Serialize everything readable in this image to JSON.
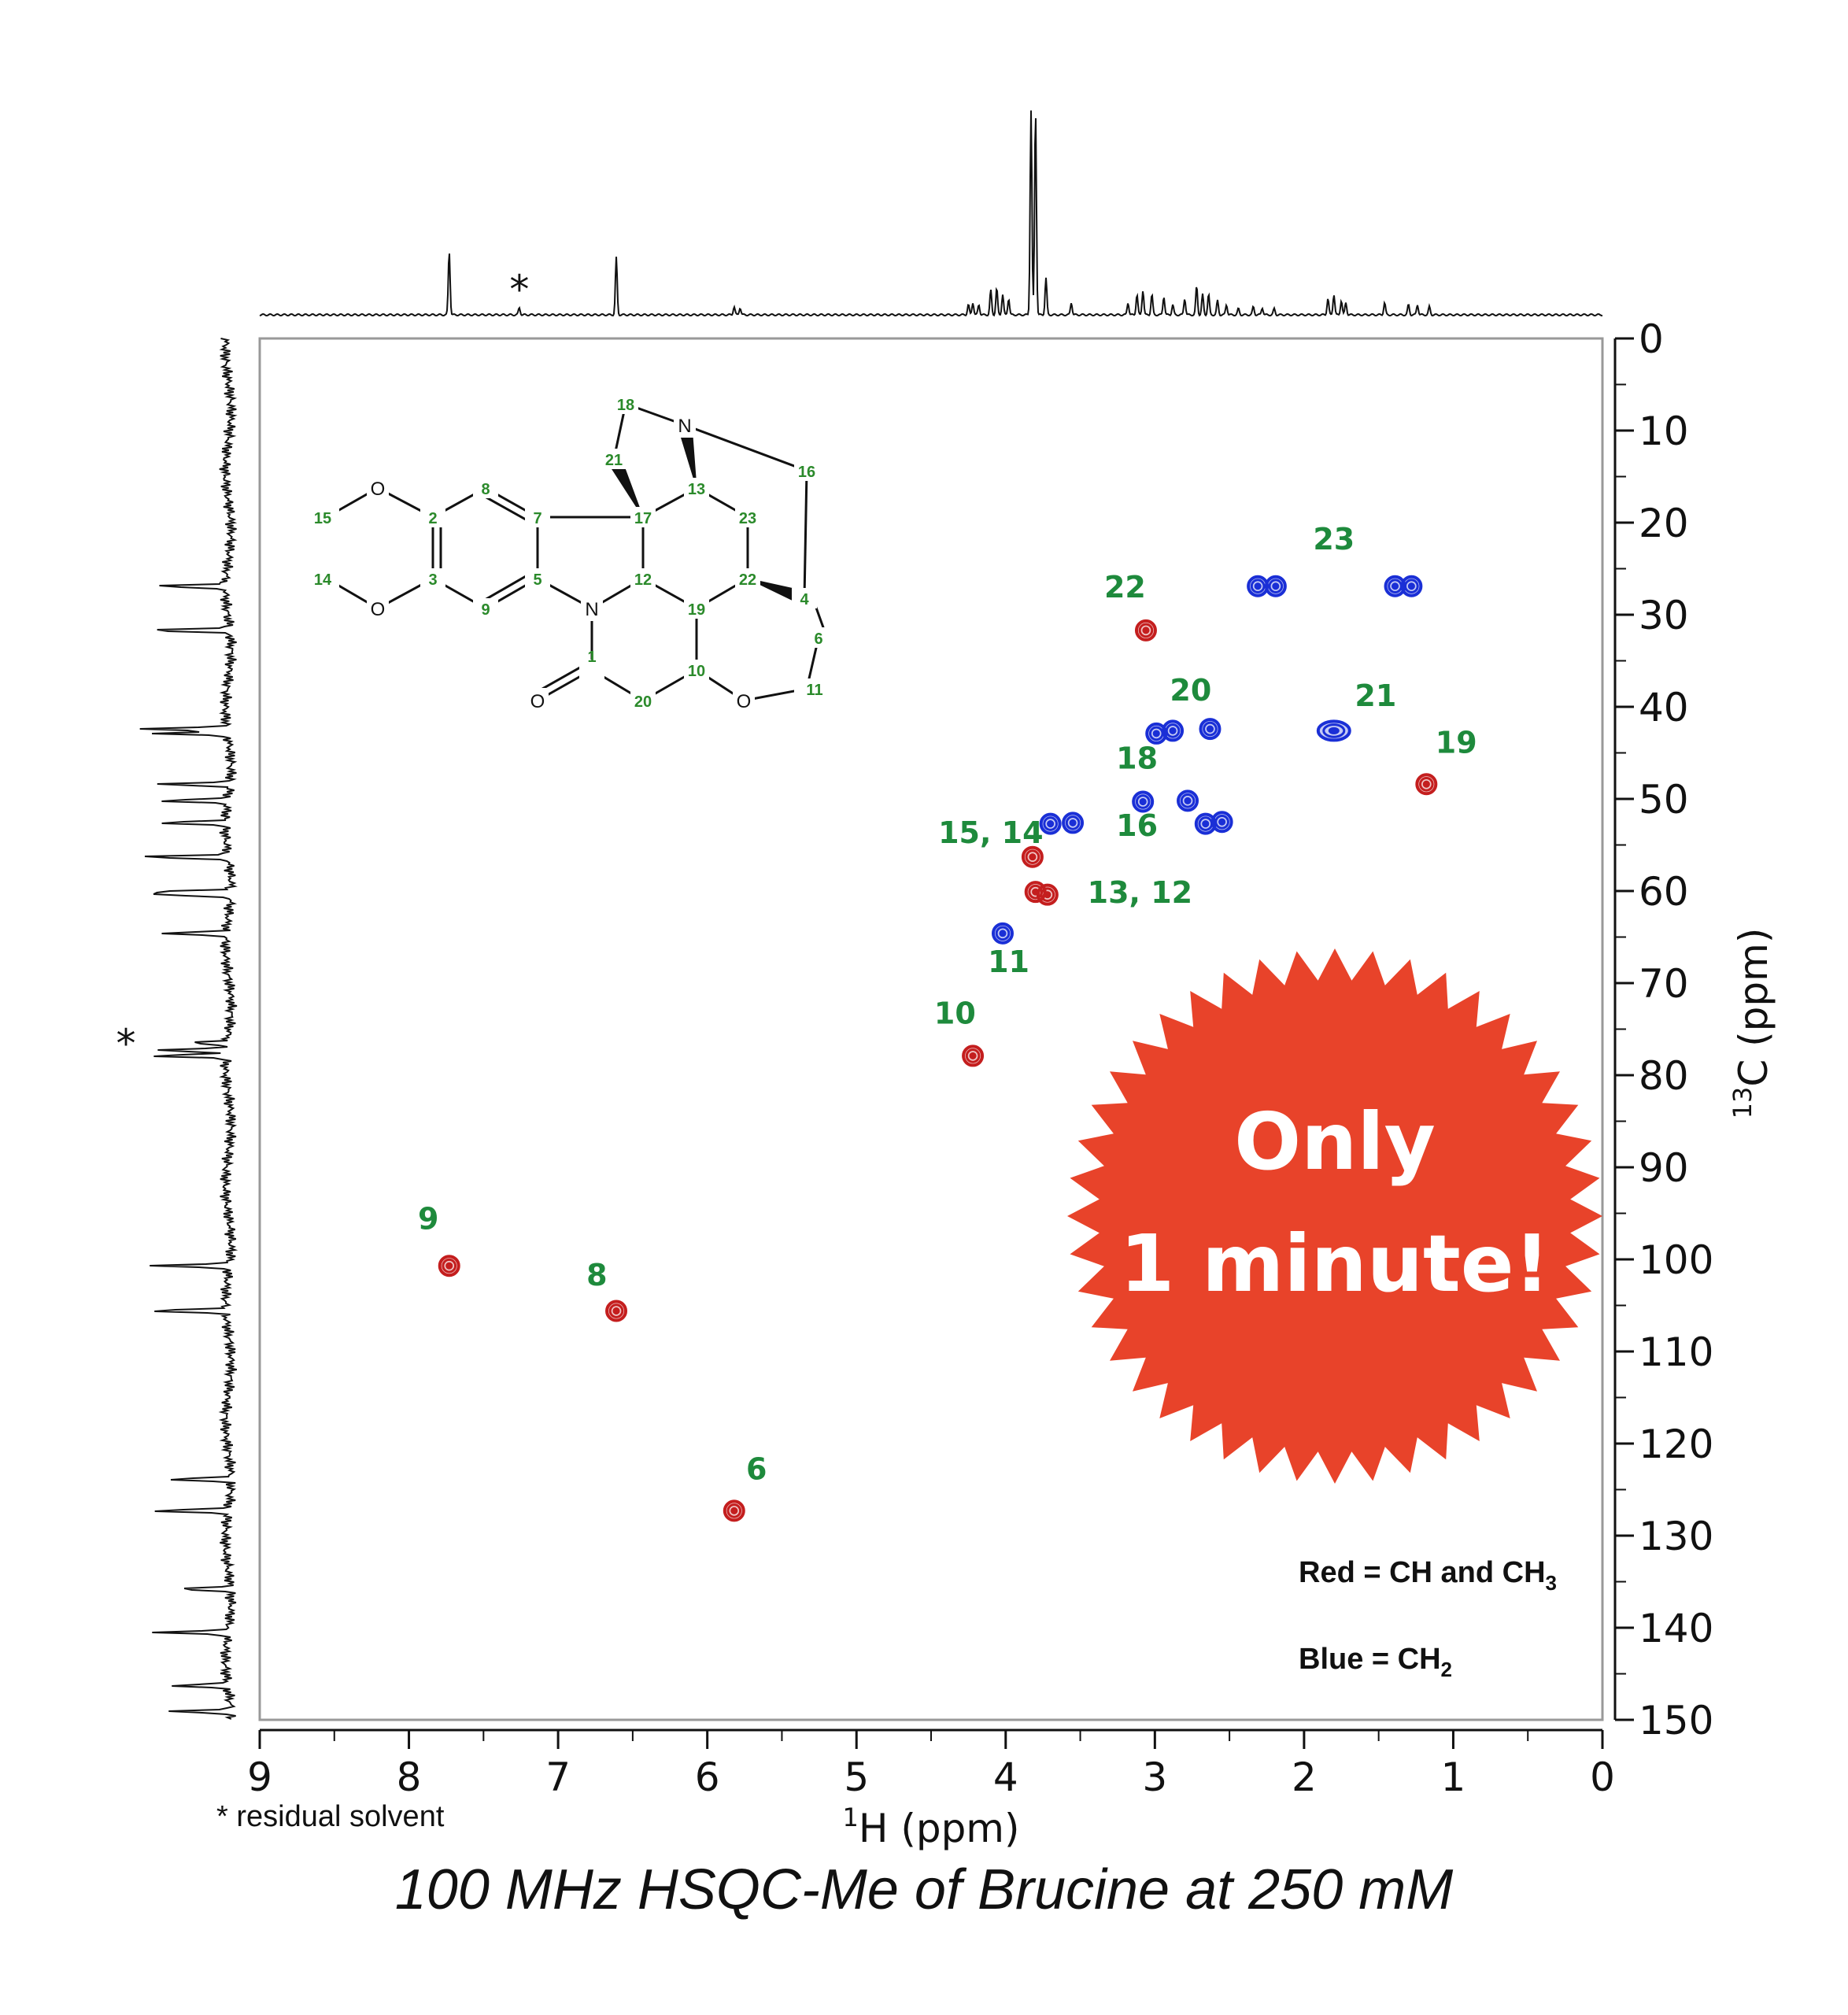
{
  "chart_data": {
    "type": "scatter",
    "title": "100 MHz HSQC-Me of Brucine at 250 mM",
    "xlabel": "1H (ppm)",
    "ylabel": "13C (ppm)",
    "xlim": [
      9,
      0
    ],
    "ylim": [
      0,
      150
    ],
    "x_ticks": [
      "9",
      "8",
      "7",
      "6",
      "5",
      "4",
      "3",
      "2",
      "1",
      "0"
    ],
    "y_ticks": [
      "0",
      "10",
      "20",
      "30",
      "40",
      "50",
      "60",
      "70",
      "80",
      "90",
      "100",
      "110",
      "120",
      "130",
      "140",
      "150"
    ],
    "series": [
      {
        "name": "Red = CH and CH3",
        "color": "#c41e1e",
        "points": [
          {
            "x": 7.73,
            "y": 100.7
          },
          {
            "x": 6.61,
            "y": 105.6
          },
          {
            "x": 5.82,
            "y": 127.3
          },
          {
            "x": 4.22,
            "y": 77.9
          },
          {
            "x": 3.82,
            "y": 56.3
          },
          {
            "x": 3.72,
            "y": 60.4
          },
          {
            "x": 3.8,
            "y": 60.1
          },
          {
            "x": 3.06,
            "y": 31.7
          },
          {
            "x": 1.18,
            "y": 48.4
          }
        ]
      },
      {
        "name": "Blue = CH2",
        "color": "#1a2fd6",
        "points": [
          {
            "x": 4.02,
            "y": 64.6
          },
          {
            "x": 3.7,
            "y": 52.7
          },
          {
            "x": 3.55,
            "y": 52.6
          },
          {
            "x": 2.66,
            "y": 52.7
          },
          {
            "x": 2.55,
            "y": 52.5
          },
          {
            "x": 3.08,
            "y": 50.3
          },
          {
            "x": 2.78,
            "y": 50.2
          },
          {
            "x": 2.88,
            "y": 42.6
          },
          {
            "x": 2.99,
            "y": 42.9
          },
          {
            "x": 2.63,
            "y": 42.4
          },
          {
            "x": 1.8,
            "y": 42.6
          },
          {
            "x": 1.39,
            "y": 26.9
          },
          {
            "x": 1.28,
            "y": 26.9
          },
          {
            "x": 2.31,
            "y": 26.9
          },
          {
            "x": 2.19,
            "y": 26.9
          }
        ]
      }
    ],
    "peak_labels": [
      {
        "text": "9",
        "x": 7.87,
        "y": 96.7
      },
      {
        "text": "8",
        "x": 6.74,
        "y": 102.8
      },
      {
        "text": "6",
        "x": 5.67,
        "y": 123.9
      },
      {
        "text": "10",
        "x": 4.34,
        "y": 74.4
      },
      {
        "text": "11",
        "x": 3.98,
        "y": 68.8
      },
      {
        "text": "15, 14",
        "x": 4.1,
        "y": 54.8
      },
      {
        "text": "13, 12",
        "x": 3.1,
        "y": 61.3
      },
      {
        "text": "22",
        "x": 3.2,
        "y": 28.1
      },
      {
        "text": "20",
        "x": 2.76,
        "y": 39.3
      },
      {
        "text": "18",
        "x": 3.12,
        "y": 46.7
      },
      {
        "text": "16",
        "x": 3.12,
        "y": 54.0
      },
      {
        "text": "21",
        "x": 1.52,
        "y": 39.9
      },
      {
        "text": "19",
        "x": 0.98,
        "y": 45.0
      },
      {
        "text": "23",
        "x": 1.8,
        "y": 22.9
      }
    ],
    "proton_projection": {
      "peaks": [
        {
          "x": 7.73,
          "h": 0.31
        },
        {
          "x": 6.61,
          "h": 0.28
        },
        {
          "x": 7.26,
          "h": 0.035
        },
        {
          "x": 5.82,
          "h": 0.04
        },
        {
          "x": 5.78,
          "h": 0.035
        },
        {
          "x": 4.25,
          "h": 0.05
        },
        {
          "x": 4.22,
          "h": 0.06
        },
        {
          "x": 4.18,
          "h": 0.05
        },
        {
          "x": 4.1,
          "h": 0.12
        },
        {
          "x": 4.06,
          "h": 0.13
        },
        {
          "x": 4.02,
          "h": 0.1
        },
        {
          "x": 3.98,
          "h": 0.08
        },
        {
          "x": 3.83,
          "h": 1.0
        },
        {
          "x": 3.8,
          "h": 1.0
        },
        {
          "x": 3.73,
          "h": 0.18
        },
        {
          "x": 3.56,
          "h": 0.06
        },
        {
          "x": 3.18,
          "h": 0.06
        },
        {
          "x": 3.12,
          "h": 0.1
        },
        {
          "x": 3.08,
          "h": 0.12
        },
        {
          "x": 3.02,
          "h": 0.1
        },
        {
          "x": 2.94,
          "h": 0.09
        },
        {
          "x": 2.88,
          "h": 0.05
        },
        {
          "x": 2.8,
          "h": 0.08
        },
        {
          "x": 2.72,
          "h": 0.14
        },
        {
          "x": 2.68,
          "h": 0.1
        },
        {
          "x": 2.64,
          "h": 0.1
        },
        {
          "x": 2.58,
          "h": 0.07
        },
        {
          "x": 2.52,
          "h": 0.05
        },
        {
          "x": 2.44,
          "h": 0.03
        },
        {
          "x": 2.34,
          "h": 0.04
        },
        {
          "x": 2.28,
          "h": 0.035
        },
        {
          "x": 2.2,
          "h": 0.03
        },
        {
          "x": 1.84,
          "h": 0.08
        },
        {
          "x": 1.8,
          "h": 0.1
        },
        {
          "x": 1.75,
          "h": 0.07
        },
        {
          "x": 1.72,
          "h": 0.06
        },
        {
          "x": 1.46,
          "h": 0.06
        },
        {
          "x": 1.3,
          "h": 0.05
        },
        {
          "x": 1.24,
          "h": 0.05
        },
        {
          "x": 1.16,
          "h": 0.04
        }
      ]
    },
    "carbon_projection": {
      "peaks": [
        {
          "y": 26.9,
          "h": 0.55
        },
        {
          "y": 31.7,
          "h": 0.65
        },
        {
          "y": 42.4,
          "h": 0.65
        },
        {
          "y": 42.9,
          "h": 0.55
        },
        {
          "y": 48.4,
          "h": 0.55
        },
        {
          "y": 50.2,
          "h": 0.55
        },
        {
          "y": 52.6,
          "h": 0.5
        },
        {
          "y": 56.3,
          "h": 0.7
        },
        {
          "y": 60.1,
          "h": 0.6
        },
        {
          "y": 60.4,
          "h": 0.55
        },
        {
          "y": 64.6,
          "h": 0.5
        },
        {
          "y": 76.5,
          "h": 0.3
        },
        {
          "y": 77.3,
          "h": 0.55
        },
        {
          "y": 77.9,
          "h": 0.55
        },
        {
          "y": 100.7,
          "h": 0.6
        },
        {
          "y": 105.6,
          "h": 0.6
        },
        {
          "y": 123.9,
          "h": 0.5
        },
        {
          "y": 127.3,
          "h": 0.6
        },
        {
          "y": 135.8,
          "h": 0.4
        },
        {
          "y": 140.5,
          "h": 0.55
        },
        {
          "y": 146.3,
          "h": 0.45
        },
        {
          "y": 149.1,
          "h": 0.45
        }
      ]
    }
  },
  "solvent_marker": "*",
  "solvent_note": "* residual solvent",
  "badge": {
    "line1": "Only",
    "line2": "1 minute!",
    "color": "#e8432a"
  },
  "legend": {
    "red_prefix": "Red = CH and CH",
    "red_sub": "3",
    "blue_prefix": "Blue = CH",
    "blue_sub": "2"
  },
  "axis_text": {
    "x_sup": "1",
    "x_main": "H (ppm)",
    "y_sup": "13",
    "y_main": "C (ppm)"
  },
  "structure": {
    "atom_O": "O",
    "atom_N": "N",
    "labels": [
      "1",
      "2",
      "3",
      "4",
      "5",
      "6",
      "7",
      "8",
      "9",
      "10",
      "11",
      "12",
      "13",
      "14",
      "15",
      "16",
      "17",
      "18",
      "19",
      "20",
      "21",
      "22",
      "23"
    ]
  }
}
